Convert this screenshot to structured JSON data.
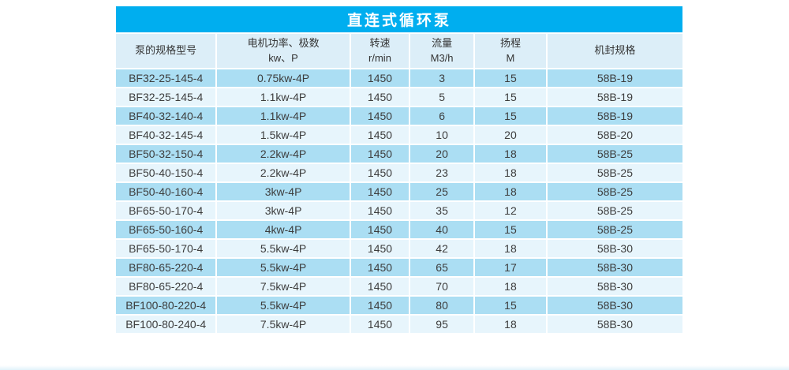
{
  "title": "直连式循环泵",
  "colors": {
    "title_bg": "#00AEEF",
    "title_text": "#FFFFFF",
    "header_bg": "#DCEEF8",
    "row_odd_bg": "#ABDEF3",
    "row_even_bg": "#E7F5FC",
    "cell_text": "#3D3D3D",
    "divider": "#FFFFFF"
  },
  "headers": [
    {
      "line1": "泵的规格型号",
      "line2": ""
    },
    {
      "line1": "电机功率、极数",
      "line2": "kw、P"
    },
    {
      "line1": "转速",
      "line2": "r/min"
    },
    {
      "line1": "流量",
      "line2": "M3/h"
    },
    {
      "line1": "扬程",
      "line2": "M"
    },
    {
      "line1": "机封规格",
      "line2": ""
    }
  ],
  "chart_data": {
    "type": "table",
    "title": "直连式循环泵",
    "columns": [
      "泵的规格型号",
      "电机功率、极数 kw、P",
      "转速 r/min",
      "流量 M3/h",
      "扬程 M",
      "机封规格"
    ],
    "rows": [
      [
        "BF32-25-145-4",
        "0.75kw-4P",
        "1450",
        "3",
        "15",
        "58B-19"
      ],
      [
        "BF32-25-145-4",
        "1.1kw-4P",
        "1450",
        "5",
        "15",
        "58B-19"
      ],
      [
        "BF40-32-140-4",
        "1.1kw-4P",
        "1450",
        "6",
        "15",
        "58B-19"
      ],
      [
        "BF40-32-145-4",
        "1.5kw-4P",
        "1450",
        "10",
        "20",
        "58B-20"
      ],
      [
        "BF50-32-150-4",
        "2.2kw-4P",
        "1450",
        "20",
        "18",
        "58B-25"
      ],
      [
        "BF50-40-150-4",
        "2.2kw-4P",
        "1450",
        "23",
        "18",
        "58B-25"
      ],
      [
        "BF50-40-160-4",
        "3kw-4P",
        "1450",
        "25",
        "18",
        "58B-25"
      ],
      [
        "BF65-50-170-4",
        "3kw-4P",
        "1450",
        "35",
        "12",
        "58B-25"
      ],
      [
        "BF65-50-160-4",
        "4kw-4P",
        "1450",
        "40",
        "15",
        "58B-25"
      ],
      [
        "BF65-50-170-4",
        "5.5kw-4P",
        "1450",
        "42",
        "18",
        "58B-30"
      ],
      [
        "BF80-65-220-4",
        "5.5kw-4P",
        "1450",
        "65",
        "17",
        "58B-30"
      ],
      [
        "BF80-65-220-4",
        "7.5kw-4P",
        "1450",
        "70",
        "18",
        "58B-30"
      ],
      [
        "BF100-80-220-4",
        "5.5kw-4P",
        "1450",
        "80",
        "15",
        "58B-30"
      ],
      [
        "BF100-80-240-4",
        "7.5kw-4P",
        "1450",
        "95",
        "18",
        "58B-30"
      ]
    ]
  }
}
